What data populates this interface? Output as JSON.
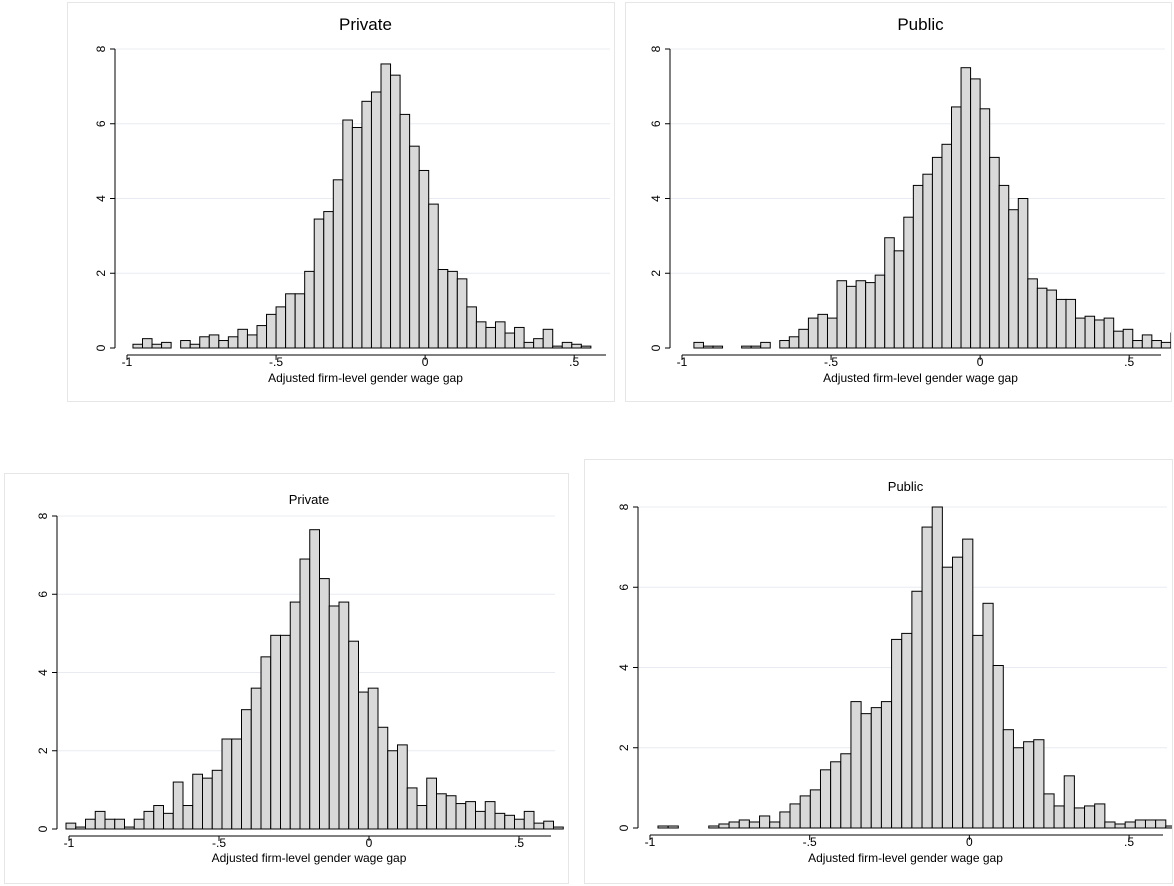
{
  "chart_data": [
    {
      "type": "bar",
      "title": "Private",
      "xlabel": "Adjusted firm-level gender wage gap",
      "ylabel": "",
      "xlim": [
        -1,
        0.6
      ],
      "ylim": [
        0,
        8
      ],
      "xticks": [
        -1,
        -0.5,
        0,
        0.5
      ],
      "xtick_labels": [
        "-1",
        "-.5",
        "0",
        ".5"
      ],
      "yticks": [
        0,
        2,
        4,
        6,
        8
      ],
      "ytick_labels": [
        "0",
        "2",
        "4",
        "6",
        "8"
      ],
      "grid": true,
      "bin_start": -0.98,
      "bin_width": 0.032,
      "values": [
        0.1,
        0.25,
        0.1,
        0.15,
        0.0,
        0.2,
        0.1,
        0.3,
        0.35,
        0.2,
        0.3,
        0.5,
        0.35,
        0.6,
        0.9,
        1.1,
        1.45,
        1.45,
        2.05,
        3.45,
        3.65,
        4.5,
        6.1,
        5.9,
        6.6,
        6.85,
        7.6,
        7.3,
        6.25,
        5.4,
        4.75,
        3.85,
        2.1,
        2.05,
        1.85,
        1.1,
        0.7,
        0.55,
        0.7,
        0.4,
        0.55,
        0.15,
        0.25,
        0.5,
        0.05,
        0.15,
        0.1,
        0.05
      ]
    },
    {
      "type": "bar",
      "title": "Public",
      "xlabel": "Adjusted firm-level gender wage gap",
      "ylabel": "",
      "xlim": [
        -1,
        0.6
      ],
      "ylim": [
        0,
        8
      ],
      "xticks": [
        -1,
        -0.5,
        0,
        0.5
      ],
      "xtick_labels": [
        "-1",
        "-.5",
        "0",
        ".5"
      ],
      "yticks": [
        0,
        2,
        4,
        6,
        8
      ],
      "ytick_labels": [
        "0",
        "2",
        "4",
        "6",
        "8"
      ],
      "grid": true,
      "bin_start": -0.96,
      "bin_width": 0.032,
      "values": [
        0.15,
        0.05,
        0.05,
        0.0,
        0.0,
        0.05,
        0.05,
        0.15,
        0.0,
        0.2,
        0.3,
        0.5,
        0.8,
        0.9,
        0.8,
        1.8,
        1.65,
        1.8,
        1.75,
        1.95,
        2.95,
        2.6,
        3.5,
        4.35,
        4.65,
        5.1,
        5.45,
        6.45,
        7.5,
        7.2,
        6.4,
        5.1,
        4.35,
        3.7,
        4.0,
        1.85,
        1.6,
        1.55,
        1.3,
        1.3,
        0.8,
        0.85,
        0.75,
        0.8,
        0.45,
        0.5,
        0.2,
        0.35,
        0.2,
        0.15,
        0.4,
        0.1
      ]
    },
    {
      "type": "bar",
      "title": "Private",
      "xlabel": "Adjusted firm-level gender wage gap",
      "ylabel": "",
      "xlim": [
        -1,
        0.6
      ],
      "ylim": [
        0,
        8
      ],
      "xticks": [
        -1,
        -0.5,
        0,
        0.5
      ],
      "xtick_labels": [
        "-1",
        "-.5",
        "0",
        ".5"
      ],
      "yticks": [
        0,
        2,
        4,
        6,
        8
      ],
      "ytick_labels": [
        "0",
        "2",
        "4",
        "6",
        "8"
      ],
      "grid": true,
      "bin_start": -1.01,
      "bin_width": 0.0325,
      "values": [
        0.15,
        0.05,
        0.25,
        0.45,
        0.25,
        0.25,
        0.05,
        0.25,
        0.45,
        0.6,
        0.4,
        1.2,
        0.6,
        1.4,
        1.3,
        1.5,
        2.3,
        2.3,
        3.05,
        3.6,
        4.4,
        4.95,
        4.95,
        5.8,
        6.9,
        7.65,
        6.4,
        5.7,
        5.8,
        4.8,
        3.5,
        3.6,
        2.6,
        2.0,
        2.15,
        1.05,
        0.6,
        1.3,
        0.9,
        0.85,
        0.65,
        0.7,
        0.45,
        0.7,
        0.4,
        0.35,
        0.25,
        0.45,
        0.15,
        0.2,
        0.05
      ]
    },
    {
      "type": "bar",
      "title": "Public",
      "xlabel": "Adjusted firm-level gender wage gap",
      "ylabel": "",
      "xlim": [
        -1,
        0.6
      ],
      "ylim": [
        0,
        8
      ],
      "xticks": [
        -1,
        -0.5,
        0,
        0.5
      ],
      "xtick_labels": [
        "-1",
        "-.5",
        "0",
        ".5"
      ],
      "yticks": [
        0,
        2,
        4,
        6,
        8
      ],
      "ytick_labels": [
        "0",
        "2",
        "4",
        "6",
        "8"
      ],
      "grid": true,
      "bin_start": -0.975,
      "bin_width": 0.0318,
      "values": [
        0.05,
        0.05,
        0.0,
        0.0,
        0.0,
        0.05,
        0.1,
        0.15,
        0.2,
        0.15,
        0.3,
        0.15,
        0.4,
        0.6,
        0.8,
        0.95,
        1.45,
        1.65,
        1.85,
        3.15,
        2.85,
        3.0,
        3.15,
        4.7,
        4.85,
        5.9,
        7.5,
        8.0,
        6.5,
        6.75,
        7.2,
        4.8,
        5.6,
        4.05,
        2.45,
        2.0,
        2.15,
        2.2,
        0.85,
        0.55,
        1.3,
        0.5,
        0.55,
        0.6,
        0.15,
        0.1,
        0.15,
        0.2,
        0.2,
        0.2,
        0.05,
        0.2,
        0.2
      ]
    }
  ]
}
